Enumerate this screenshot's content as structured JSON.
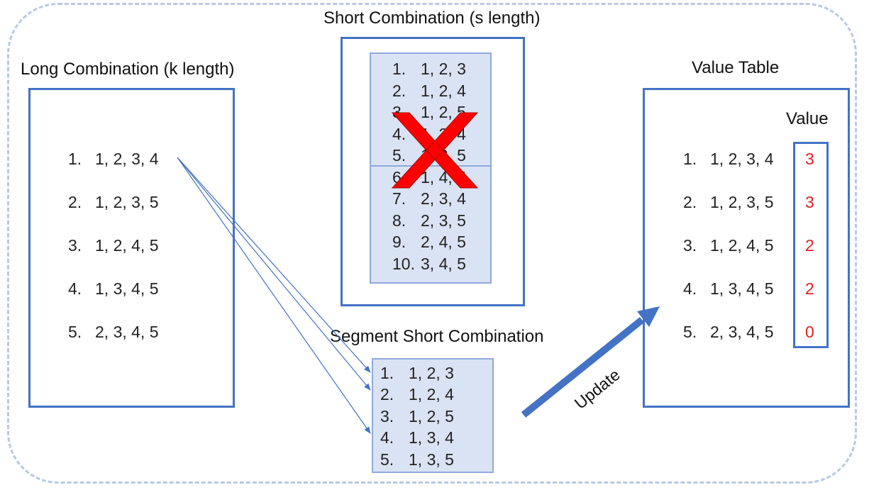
{
  "titles": {
    "short": "Short Combination (s length)",
    "long": "Long Combination (k length)",
    "value_table": "Value Table",
    "segment": "Segment Short Combination",
    "value_header": "Value",
    "update": "Update"
  },
  "long_list": [
    {
      "num": "1.",
      "items": "1, 2, 3, 4"
    },
    {
      "num": "2.",
      "items": "1, 2, 3, 5"
    },
    {
      "num": "3.",
      "items": "1, 2, 4, 5"
    },
    {
      "num": "4.",
      "items": "1, 3, 4, 5"
    },
    {
      "num": "5.",
      "items": "2, 3, 4, 5"
    }
  ],
  "short_list": [
    {
      "num": "1.",
      "items": "1, 2, 3"
    },
    {
      "num": "2.",
      "items": "1, 2, 4"
    },
    {
      "num": "3.",
      "items": "1, 2, 5"
    },
    {
      "num": "4.",
      "items": "1, 3, 4"
    },
    {
      "num": "5.",
      "items": "1, 3, 5"
    },
    {
      "num": "6.",
      "items": "1, 4, 5"
    },
    {
      "num": "7.",
      "items": "2, 3, 4"
    },
    {
      "num": "8.",
      "items": "2, 3, 5"
    },
    {
      "num": "9.",
      "items": "2, 4, 5"
    },
    {
      "num": "10.",
      "items": "3, 4, 5"
    }
  ],
  "segment_list": [
    {
      "num": "1.",
      "items": "1, 2, 3"
    },
    {
      "num": "2.",
      "items": "1, 2, 4"
    },
    {
      "num": "3.",
      "items": "1, 2, 5"
    },
    {
      "num": "4.",
      "items": "1, 3, 4"
    },
    {
      "num": "5.",
      "items": "1, 3, 5"
    }
  ],
  "value_list": [
    {
      "num": "1.",
      "items": "1, 2, 3, 4",
      "value": "3"
    },
    {
      "num": "2.",
      "items": "1, 2, 3, 5",
      "value": "3"
    },
    {
      "num": "3.",
      "items": "1, 2, 4, 5",
      "value": "2"
    },
    {
      "num": "4.",
      "items": "1, 3, 4, 5",
      "value": "2"
    },
    {
      "num": "5.",
      "items": "2, 3, 4, 5",
      "value": "0"
    }
  ],
  "colors": {
    "box_border": "#4472c4",
    "fill": "#dae3f3",
    "cross": "#ff0000",
    "value_text": "#e02020",
    "outer_dash": "#b7c9e2"
  }
}
